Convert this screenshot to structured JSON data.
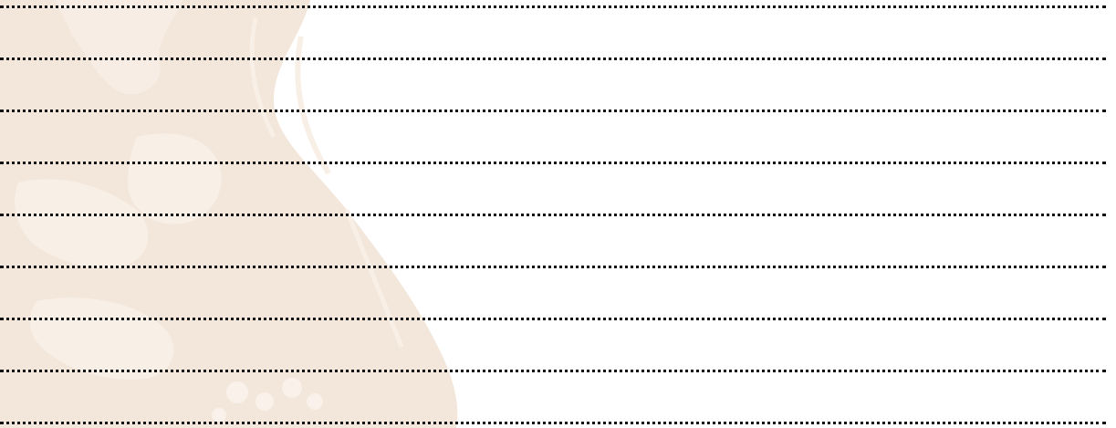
{
  "document": {
    "type": "lined-writing-sheet",
    "line_count": 9,
    "line_style": "dotted",
    "line_color": "#111111",
    "watermark": {
      "subject": "portrait-illustration",
      "color": "#f3e6da"
    },
    "background_color": "#ffffff"
  }
}
